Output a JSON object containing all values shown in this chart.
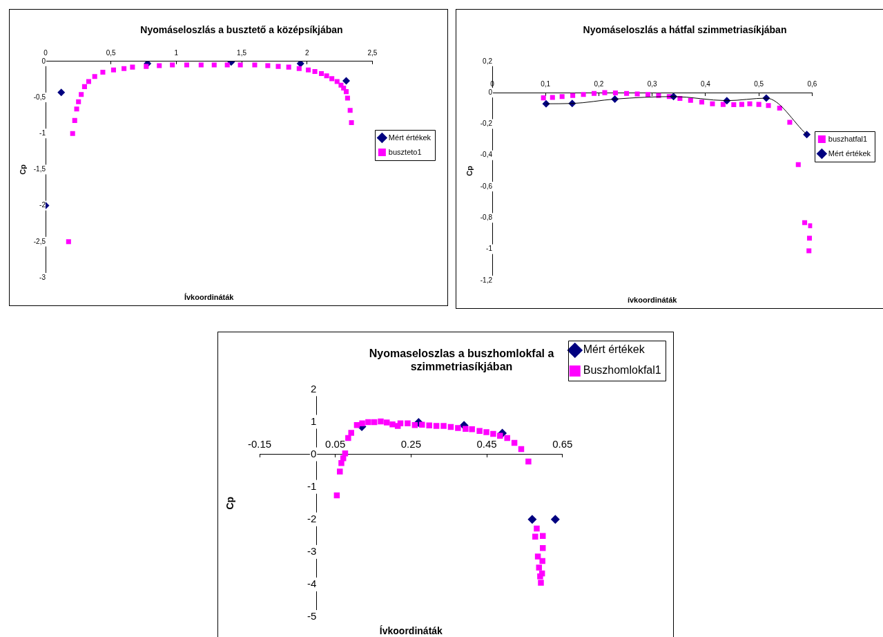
{
  "chart_data": [
    {
      "type": "scatter",
      "title": "Nyomáseloszlás a busztető a középsíkjában",
      "xlabel": "Ívkoordináták",
      "ylabel": "Cp",
      "xlim": [
        0,
        2.5
      ],
      "ylim": [
        -3,
        0
      ],
      "xticks": [
        0,
        {
          "value": 0.5,
          "label": "0,5"
        },
        1,
        {
          "value": 1.5,
          "label": "1,5"
        },
        2,
        {
          "value": 2.5,
          "label": "2,5"
        }
      ],
      "yticks": [
        0,
        {
          "value": -0.5,
          "label": "-0,5"
        },
        -1,
        {
          "value": -1.5,
          "label": "-1,5"
        },
        -2,
        {
          "value": -2.5,
          "label": "-2,5"
        },
        -3
      ],
      "grid": false,
      "legend": "right",
      "series": [
        {
          "name": "Mért értékek",
          "color": "#000080",
          "marker": "diamond",
          "x": [
            0,
            0.12,
            0.78,
            1.42,
            1.95,
            2.3
          ],
          "values": [
            -2.0,
            -0.43,
            -0.03,
            -0.01,
            -0.03,
            -0.27
          ]
        },
        {
          "name": "buszteto1",
          "color": "#ff00ff",
          "marker": "square",
          "x": [
            0.176,
            0.207,
            0.223,
            0.238,
            0.252,
            0.273,
            0.298,
            0.33,
            0.376,
            0.438,
            0.52,
            0.6,
            0.665,
            0.77,
            0.87,
            0.97,
            1.08,
            1.19,
            1.29,
            1.39,
            1.49,
            1.6,
            1.7,
            1.78,
            1.86,
            1.94,
            2.01,
            2.06,
            2.11,
            2.15,
            2.19,
            2.23,
            2.26,
            2.28,
            2.3,
            2.31,
            2.33,
            2.34
          ],
          "values": [
            -2.5,
            -1.0,
            -0.82,
            -0.66,
            -0.56,
            -0.46,
            -0.35,
            -0.28,
            -0.21,
            -0.15,
            -0.12,
            -0.1,
            -0.08,
            -0.07,
            -0.06,
            -0.05,
            -0.05,
            -0.05,
            -0.05,
            -0.05,
            -0.05,
            -0.05,
            -0.06,
            -0.07,
            -0.08,
            -0.1,
            -0.12,
            -0.14,
            -0.17,
            -0.2,
            -0.24,
            -0.28,
            -0.33,
            -0.37,
            -0.42,
            -0.51,
            -0.68,
            -0.85
          ]
        }
      ]
    },
    {
      "type": "scatter",
      "title": "Nyomáseloszlás a hátfal szimmetriasíkjában",
      "xlabel": "ívkoordináták",
      "ylabel": "Cp",
      "xlim": [
        0,
        0.6
      ],
      "ylim": [
        -1.2,
        0.2
      ],
      "xticks": [
        0,
        {
          "value": 0.1,
          "label": "0,1"
        },
        {
          "value": 0.2,
          "label": "0,2"
        },
        {
          "value": 0.3,
          "label": "0,3"
        },
        {
          "value": 0.4,
          "label": "0,4"
        },
        {
          "value": 0.5,
          "label": "0,5"
        },
        {
          "value": 0.6,
          "label": "0,6"
        }
      ],
      "yticks": [
        {
          "value": 0.2,
          "label": "0,2"
        },
        0,
        {
          "value": -0.2,
          "label": "-0,2"
        },
        {
          "value": -0.4,
          "label": "-0,4"
        },
        {
          "value": -0.6,
          "label": "-0,6"
        },
        {
          "value": -0.8,
          "label": "-0,8"
        },
        -1,
        {
          "value": -1.2,
          "label": "-1,2"
        }
      ],
      "grid": false,
      "legend": "right",
      "series": [
        {
          "name": "buszhatfal1",
          "color": "#ff00ff",
          "marker": "square",
          "x": [
            0.096,
            0.113,
            0.131,
            0.151,
            0.171,
            0.191,
            0.211,
            0.231,
            0.252,
            0.272,
            0.292,
            0.312,
            0.332,
            0.352,
            0.372,
            0.393,
            0.413,
            0.433,
            0.453,
            0.468,
            0.483,
            0.5,
            0.518,
            0.539,
            0.558,
            0.574,
            0.586,
            0.597,
            0.595,
            0.594
          ],
          "values": [
            -0.033,
            -0.03,
            -0.025,
            -0.018,
            -0.012,
            -0.005,
            0.0,
            -0.002,
            -0.005,
            -0.008,
            -0.012,
            -0.018,
            -0.025,
            -0.037,
            -0.049,
            -0.06,
            -0.071,
            -0.075,
            -0.077,
            -0.075,
            -0.071,
            -0.075,
            -0.082,
            -0.099,
            -0.189,
            -0.46,
            -0.83,
            -0.85,
            -0.93,
            -1.01
          ]
        },
        {
          "name": "Mért értékek",
          "color": "#000080",
          "marker": "diamond",
          "x": [
            0.101,
            0.15,
            0.23,
            0.34,
            0.44,
            0.514,
            0.59
          ],
          "values": [
            -0.071,
            -0.069,
            -0.041,
            -0.025,
            -0.051,
            -0.035,
            -0.268
          ]
        },
        {
          "type": "line",
          "color": "#000000",
          "marker": "none",
          "x": [
            0.101,
            0.15,
            0.23,
            0.34,
            0.44,
            0.514,
            0.59
          ],
          "values": [
            -0.071,
            -0.069,
            -0.041,
            -0.025,
            -0.051,
            -0.035,
            -0.268
          ]
        }
      ]
    },
    {
      "type": "scatter",
      "title": "Nyomaseloszlas a buszhomlokfal a szimmetriasíkjában",
      "xlabel": "Ívkoordináták",
      "ylabel": "Cp",
      "xlim": [
        -0.15,
        0.65
      ],
      "ylim": [
        -5,
        2
      ],
      "xticks": [
        -0.15,
        0.05,
        0.25,
        0.45,
        0.65
      ],
      "yticks": [
        -5,
        -4,
        -3,
        -2,
        -1,
        0,
        1,
        2
      ],
      "grid": false,
      "legend": "top right",
      "series": [
        {
          "name": "Mért értékek",
          "color": "#000080",
          "marker": "diamond",
          "x": [
            0.12,
            0.27,
            0.39,
            0.491,
            0.57,
            0.631
          ],
          "values": [
            0.85,
            0.98,
            0.89,
            0.65,
            -2.0,
            -2.0
          ]
        },
        {
          "name": "Buszhomlokfal1",
          "color": "#ff00ff",
          "marker": "square",
          "x": [
            0.054,
            0.062,
            0.066,
            0.071,
            0.076,
            0.084,
            0.092,
            0.107,
            0.121,
            0.137,
            0.153,
            0.17,
            0.186,
            0.201,
            0.215,
            0.222,
            0.241,
            0.26,
            0.279,
            0.298,
            0.317,
            0.336,
            0.355,
            0.374,
            0.394,
            0.411,
            0.431,
            0.449,
            0.467,
            0.485,
            0.504,
            0.523,
            0.541,
            0.56,
            0.582,
            0.578,
            0.598,
            0.598,
            0.585,
            0.597,
            0.588,
            0.596,
            0.591,
            0.593
          ],
          "values": [
            -1.26,
            -0.53,
            -0.27,
            -0.12,
            0.03,
            0.5,
            0.66,
            0.9,
            0.95,
            0.99,
            0.99,
            1.01,
            0.98,
            0.92,
            0.87,
            0.95,
            0.95,
            0.9,
            0.91,
            0.89,
            0.87,
            0.87,
            0.84,
            0.81,
            0.78,
            0.77,
            0.72,
            0.68,
            0.63,
            0.57,
            0.5,
            0.35,
            0.16,
            -0.22,
            -2.28,
            -2.53,
            -2.51,
            -2.88,
            -3.14,
            -3.28,
            -3.48,
            -3.66,
            -3.75,
            -3.95
          ]
        }
      ]
    }
  ]
}
